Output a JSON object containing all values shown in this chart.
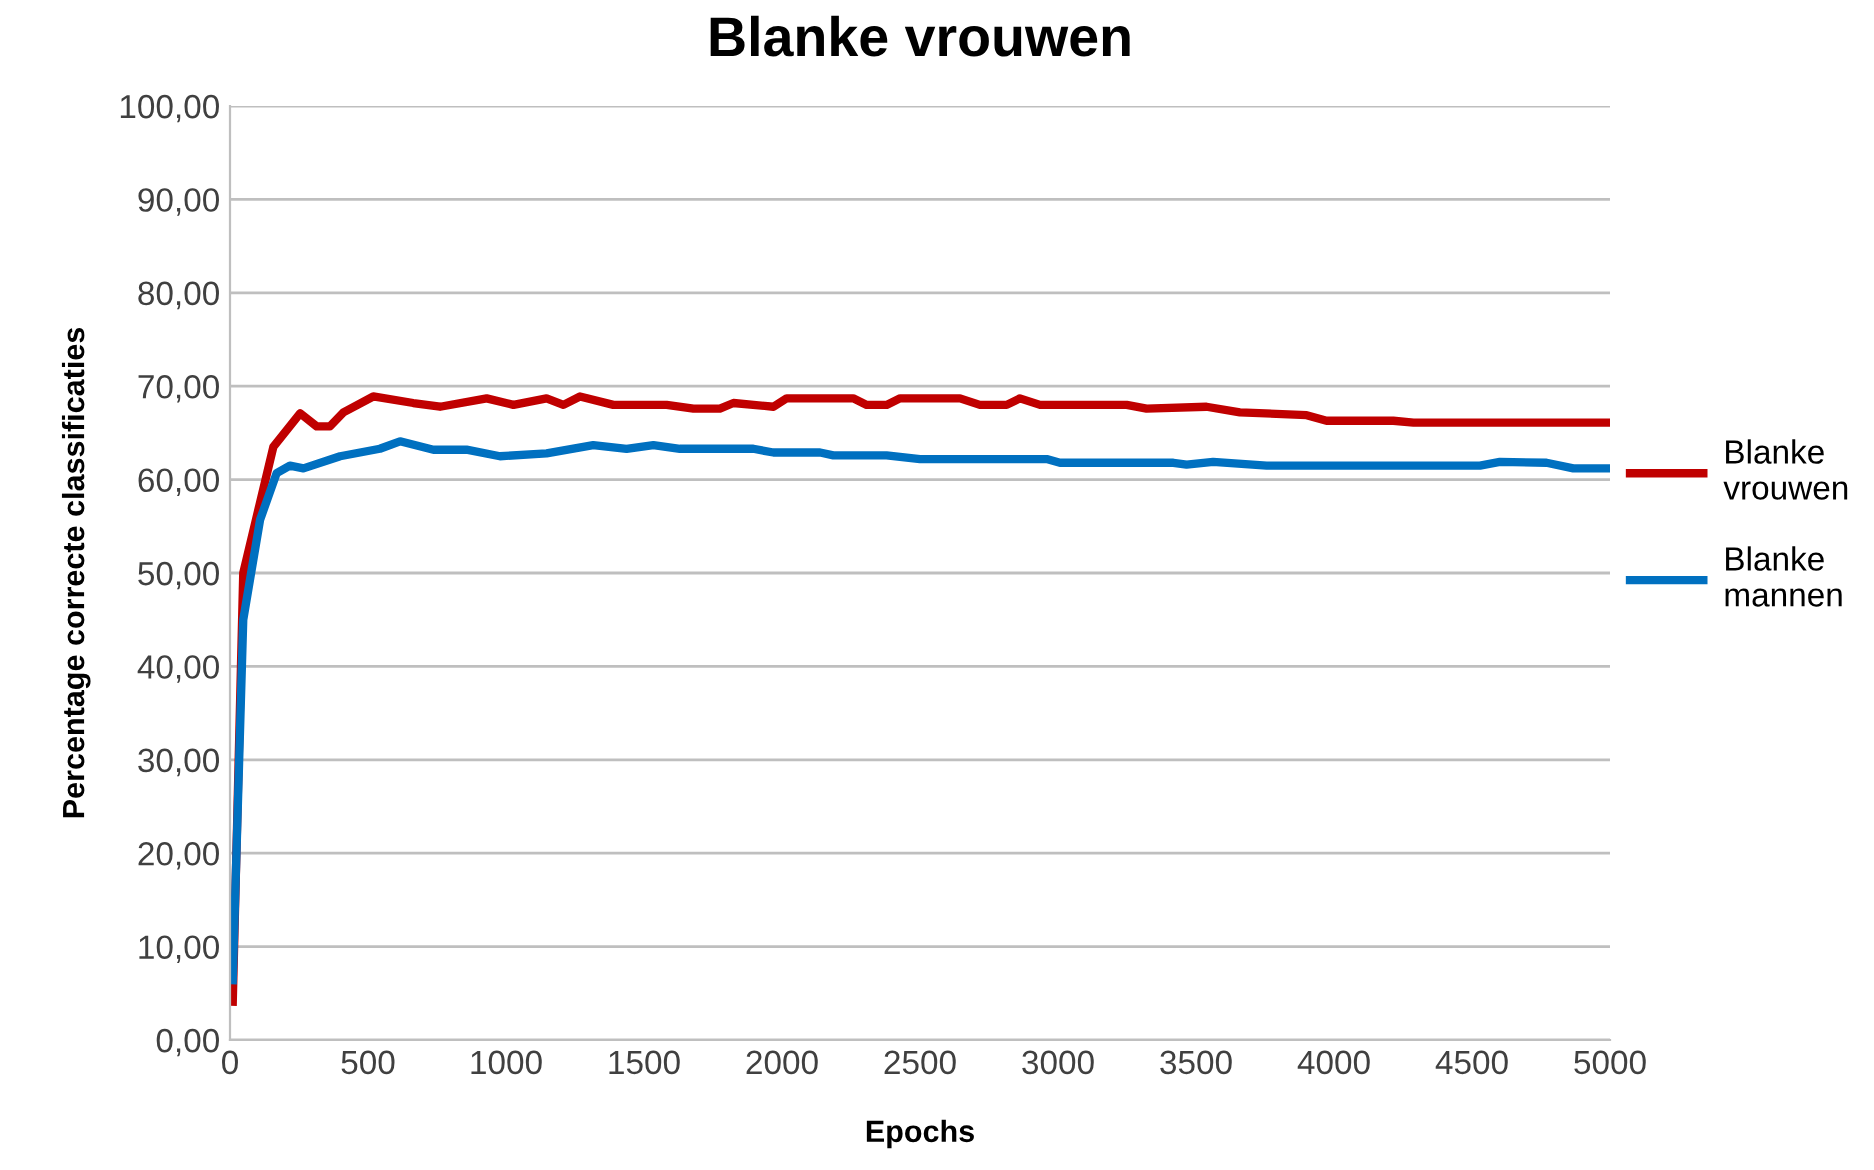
{
  "chart_data": {
    "type": "line",
    "title": "Blanke vrouwen",
    "xlabel": "Epochs",
    "ylabel": "Percentage correcte classificaties",
    "xlim": [
      0,
      5000
    ],
    "xticks": [
      0,
      500,
      1000,
      1500,
      2000,
      2500,
      3000,
      3500,
      4000,
      4500,
      5000
    ],
    "ylim": [
      0,
      100
    ],
    "yticks": [
      {
        "value": 0,
        "label": "0,00"
      },
      {
        "value": 10,
        "label": "10,00"
      },
      {
        "value": 20,
        "label": "20,00"
      },
      {
        "value": 30,
        "label": "30,00"
      },
      {
        "value": 40,
        "label": "40,00"
      },
      {
        "value": 50,
        "label": "50,00"
      },
      {
        "value": 60,
        "label": "60,00"
      },
      {
        "value": 70,
        "label": "70,00"
      },
      {
        "value": 80,
        "label": "80,00"
      },
      {
        "value": 90,
        "label": "90,00"
      },
      {
        "value": 100,
        "label": "100,00"
      }
    ],
    "grid": "y",
    "legend": "right",
    "marker": "none",
    "line_style": "solid",
    "series": [
      {
        "name": "Blanke vrouwen",
        "color": "#c00000",
        "x": [
          10,
          48,
          157,
          254,
          314,
          362,
          411,
          519,
          664,
          761,
          930,
          1027,
          1147,
          1208,
          1268,
          1389,
          1582,
          1679,
          1775,
          1824,
          1969,
          2017,
          2258,
          2307,
          2379,
          2428,
          2645,
          2717,
          2814,
          2862,
          2935,
          3249,
          3321,
          3538,
          3659,
          3901,
          3973,
          4215,
          4288,
          5000
        ],
        "values": [
          4.1,
          50.0,
          63.5,
          67.1,
          65.7,
          65.7,
          67.2,
          68.9,
          68.2,
          67.8,
          68.7,
          68.0,
          68.7,
          68.0,
          68.9,
          68.0,
          68.0,
          67.6,
          67.6,
          68.2,
          67.8,
          68.7,
          68.7,
          68.0,
          68.0,
          68.7,
          68.7,
          68.0,
          68.0,
          68.7,
          68.0,
          68.0,
          67.6,
          67.8,
          67.2,
          66.9,
          66.3,
          66.3,
          66.1,
          66.1
        ]
      },
      {
        "name": "Blanke mannen",
        "color": "#0070c0",
        "x": [
          10,
          48,
          109,
          169,
          217,
          266,
          399,
          543,
          616,
          737,
          857,
          978,
          1147,
          1316,
          1437,
          1534,
          1630,
          1896,
          1969,
          2138,
          2186,
          2379,
          2500,
          2959,
          3007,
          3418,
          3466,
          3562,
          3756,
          4529,
          4601,
          4770,
          4867,
          5000
        ],
        "values": [
          6.4,
          45.0,
          55.7,
          60.7,
          61.5,
          61.2,
          62.5,
          63.3,
          64.1,
          63.2,
          63.2,
          62.5,
          62.8,
          63.7,
          63.3,
          63.7,
          63.3,
          63.3,
          62.9,
          62.9,
          62.6,
          62.6,
          62.2,
          62.2,
          61.8,
          61.8,
          61.6,
          61.9,
          61.5,
          61.5,
          61.9,
          61.8,
          61.2,
          61.2
        ]
      }
    ]
  }
}
